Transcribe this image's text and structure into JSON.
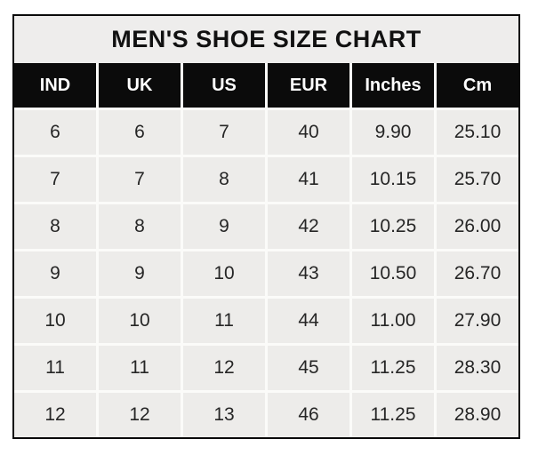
{
  "page_title": "MEN'S SHOE SIZE CHART",
  "chart_data": {
    "type": "table",
    "title": "MEN'S SHOE SIZE CHART",
    "columns": [
      "IND",
      "UK",
      "US",
      "EUR",
      "Inches",
      "Cm"
    ],
    "rows": [
      [
        "6",
        "6",
        "7",
        "40",
        "9.90",
        "25.10"
      ],
      [
        "7",
        "7",
        "8",
        "41",
        "10.15",
        "25.70"
      ],
      [
        "8",
        "8",
        "9",
        "42",
        "10.25",
        "26.00"
      ],
      [
        "9",
        "9",
        "10",
        "43",
        "10.50",
        "26.70"
      ],
      [
        "10",
        "10",
        "11",
        "44",
        "11.00",
        "27.90"
      ],
      [
        "11",
        "11",
        "12",
        "45",
        "11.25",
        "28.30"
      ],
      [
        "12",
        "12",
        "13",
        "46",
        "11.25",
        "28.90"
      ]
    ],
    "layout": {
      "grid": "on",
      "header_style": "black-band",
      "gridline_style": "white"
    }
  },
  "colors": {
    "border": "#0a0a0a",
    "title_bg": "#eeedec",
    "header_bg": "#0b0b0b",
    "header_text": "#ffffff",
    "cell_bg": "#edecea",
    "grid_line": "#fbfbf9",
    "cell_text": "#262626"
  }
}
